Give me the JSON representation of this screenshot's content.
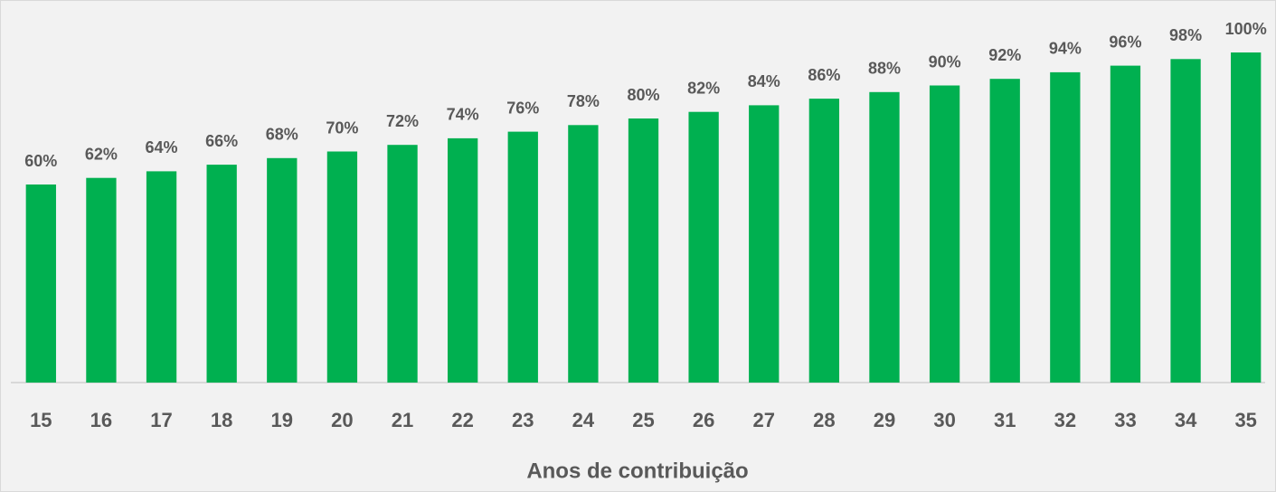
{
  "chart_data": {
    "type": "bar",
    "x_label": "Anos de contribuição",
    "categories": [
      "15",
      "16",
      "17",
      "18",
      "19",
      "20",
      "21",
      "22",
      "23",
      "24",
      "25",
      "26",
      "27",
      "28",
      "29",
      "30",
      "31",
      "32",
      "33",
      "34",
      "35"
    ],
    "values": [
      60,
      62,
      64,
      66,
      68,
      70,
      72,
      74,
      76,
      78,
      80,
      82,
      84,
      86,
      88,
      90,
      92,
      94,
      96,
      98,
      100
    ],
    "value_labels": [
      "60%",
      "62%",
      "64%",
      "66%",
      "68%",
      "70%",
      "72%",
      "74%",
      "76%",
      "78%",
      "80%",
      "82%",
      "84%",
      "86%",
      "88%",
      "90%",
      "92%",
      "94%",
      "96%",
      "98%",
      "100%"
    ],
    "color": "#00b050",
    "ylim": [
      0,
      100
    ],
    "grid": false
  }
}
